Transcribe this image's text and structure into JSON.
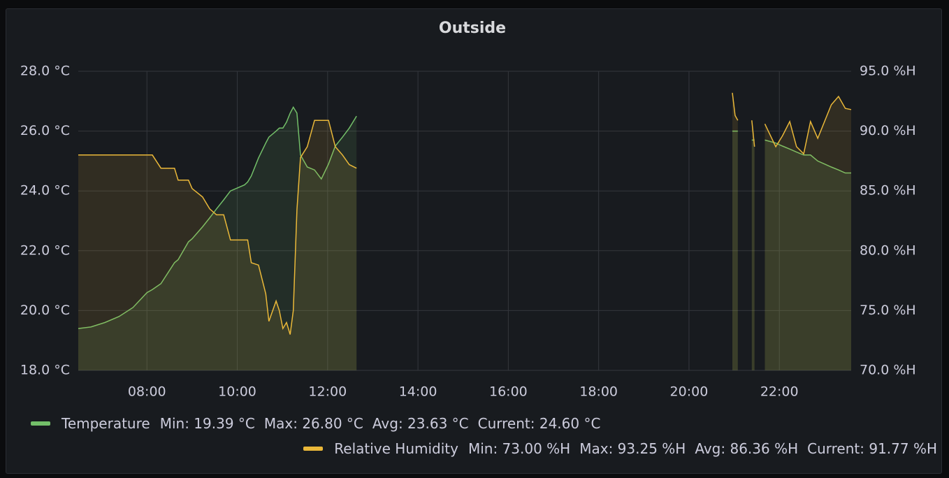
{
  "chart_data": {
    "type": "line",
    "title": "Outside",
    "x": [
      6.48,
      6.76,
      7.07,
      7.38,
      7.69,
      8.0,
      8.12,
      8.31,
      8.61,
      8.69,
      8.92,
      9.0,
      9.23,
      9.39,
      9.54,
      9.7,
      9.85,
      10.16,
      10.23,
      10.31,
      10.47,
      10.63,
      10.7,
      10.86,
      10.93,
      11.01,
      11.09,
      11.17,
      11.24,
      11.32,
      11.4,
      11.55,
      11.71,
      11.86,
      12.02,
      12.17,
      12.33,
      12.48,
      12.64,
      16.0,
      20.96,
      21.02,
      21.08,
      21.3,
      21.39,
      21.45,
      21.55,
      21.68,
      21.92,
      22.07,
      22.23,
      22.38,
      22.54,
      22.69,
      22.85,
      23.0,
      23.15,
      23.31,
      23.46,
      23.59
    ],
    "series": [
      {
        "name": "Temperature",
        "color": "#73bf69",
        "legend": [
          "Min: 19.39 °C",
          "Max: 26.80 °C",
          "Avg: 23.63 °C",
          "Current: 24.60 °C"
        ],
        "values": [
          19.4,
          19.45,
          19.6,
          19.8,
          20.1,
          20.6,
          20.7,
          20.9,
          21.6,
          21.7,
          22.3,
          22.4,
          22.8,
          23.1,
          23.4,
          23.7,
          24.0,
          24.2,
          24.3,
          24.5,
          25.1,
          25.6,
          25.8,
          26.0,
          26.1,
          26.1,
          26.3,
          26.6,
          26.8,
          26.6,
          25.2,
          24.8,
          24.7,
          24.4,
          24.9,
          25.5,
          25.8,
          26.1,
          26.5,
          null,
          26.0,
          26.0,
          26.0,
          null,
          25.7,
          25.7,
          null,
          25.7,
          25.6,
          25.5,
          25.4,
          25.3,
          25.2,
          25.2,
          25.0,
          24.9,
          24.8,
          24.7,
          24.6,
          24.6
        ]
      },
      {
        "name": "Relative Humidity",
        "color": "#eab839",
        "axis": "y2",
        "legend": [
          "Min: 73.00 %H",
          "Max: 93.25 %H",
          "Avg: 86.36 %H",
          "Current: 91.77 %H"
        ],
        "values": [
          88,
          88,
          88,
          88,
          88,
          88,
          88,
          86.9,
          86.9,
          85.9,
          85.9,
          85.2,
          84.5,
          83.5,
          83,
          83,
          80.9,
          80.9,
          80.9,
          79,
          78.8,
          76.4,
          74.1,
          75.8,
          75,
          73.5,
          74,
          73,
          75,
          83.4,
          87.8,
          88.7,
          90.9,
          90.9,
          90.9,
          88.7,
          88,
          87.2,
          86.9,
          null,
          93.2,
          91.3,
          90.9,
          null,
          90.9,
          88.7,
          null,
          90.6,
          88.7,
          89.6,
          90.8,
          88.7,
          88.1,
          90.8,
          89.4,
          90.8,
          92.2,
          92.9,
          91.9,
          91.8
        ]
      }
    ],
    "xlim": [
      6.48,
      23.59
    ],
    "xticks": [
      {
        "value": 8,
        "label": "08:00"
      },
      {
        "value": 10,
        "label": "10:00"
      },
      {
        "value": 12,
        "label": "12:00"
      },
      {
        "value": 14,
        "label": "14:00"
      },
      {
        "value": 16,
        "label": "16:00"
      },
      {
        "value": 18,
        "label": "18:00"
      },
      {
        "value": 20,
        "label": "20:00"
      },
      {
        "value": 22,
        "label": "22:00"
      }
    ],
    "ylim": [
      18,
      28
    ],
    "yticks": [
      {
        "value": 18,
        "label": "18.0 °C"
      },
      {
        "value": 20,
        "label": "20.0 °C"
      },
      {
        "value": 22,
        "label": "22.0 °C"
      },
      {
        "value": 24,
        "label": "24.0 °C"
      },
      {
        "value": 26,
        "label": "26.0 °C"
      },
      {
        "value": 28,
        "label": "28.0 °C"
      }
    ],
    "y2lim": [
      70,
      95
    ],
    "y2ticks": [
      {
        "value": 70,
        "label": "70.0 %H"
      },
      {
        "value": 75,
        "label": "75.0 %H"
      },
      {
        "value": 80,
        "label": "80.0 %H"
      },
      {
        "value": 85,
        "label": "85.0 %H"
      },
      {
        "value": 90,
        "label": "90.0 %H"
      },
      {
        "value": 95,
        "label": "95.0 %H"
      }
    ],
    "grid": true
  }
}
